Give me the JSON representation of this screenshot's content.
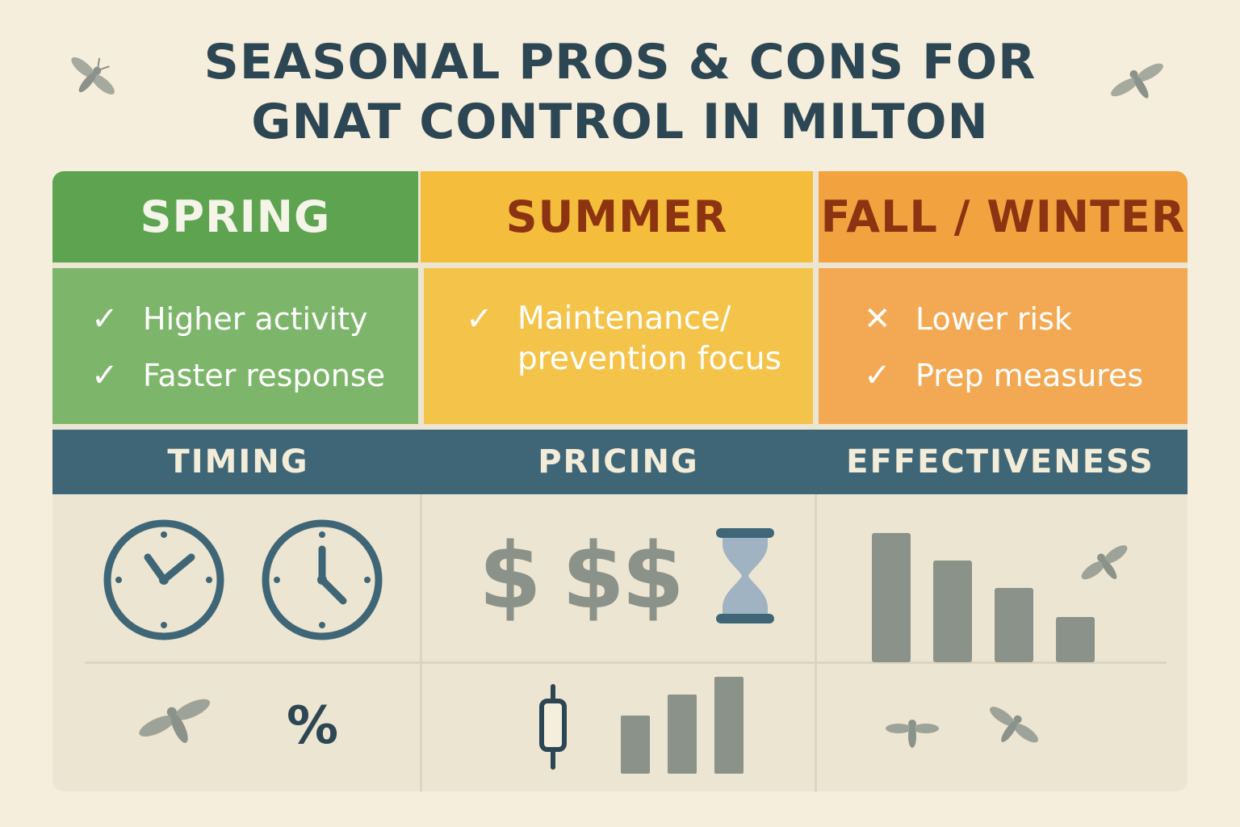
{
  "title": {
    "line1": "SEASONAL PROS & CONS FOR",
    "line2": "GNAT CONTROL IN MILTON"
  },
  "seasons": [
    {
      "name": "SPRING",
      "header_color": "#5ea450",
      "body_color": "#7db56a",
      "text_color": "#f4f4e8",
      "items": [
        {
          "mark": "✓",
          "text": "Higher activity"
        },
        {
          "mark": "✓",
          "text": "Faster response"
        }
      ]
    },
    {
      "name": "SUMMER",
      "header_color": "#f4be3c",
      "body_color": "#f4c44a",
      "text_color": "#8c3412",
      "items": [
        {
          "mark": "✓",
          "text": "Maintenance/ prevention focus"
        }
      ]
    },
    {
      "name": "FALL / WINTER",
      "header_color": "#f2a340",
      "body_color": "#f3a954",
      "text_color": "#8c3412",
      "items": [
        {
          "mark": "✕",
          "text": "Lower risk"
        },
        {
          "mark": "✓",
          "text": "Prep measures"
        }
      ]
    }
  ],
  "categories": [
    "TIMING",
    "PRICING",
    "EFFECTIVENESS"
  ],
  "icons": {
    "timing": [
      "clock-icon",
      "clock-icon",
      "gnat-icon",
      "percent-icon"
    ],
    "pricing": [
      "dollar-icon",
      "dollar-icon",
      "dollar-icon",
      "hourglass-icon",
      "candlestick-icon",
      "bar-chart-icon"
    ],
    "effectiveness": [
      "bar-chart-icon",
      "gnat-icon",
      "gnat-icon",
      "gnat-icon"
    ]
  },
  "pricing_symbols": {
    "dollar": "$",
    "percent": "%"
  },
  "colors": {
    "background": "#f6eedc",
    "title": "#2d4653",
    "category_bar": "#3f6677",
    "icon_blue": "#3f6677",
    "icon_gray": "#8a928a"
  }
}
